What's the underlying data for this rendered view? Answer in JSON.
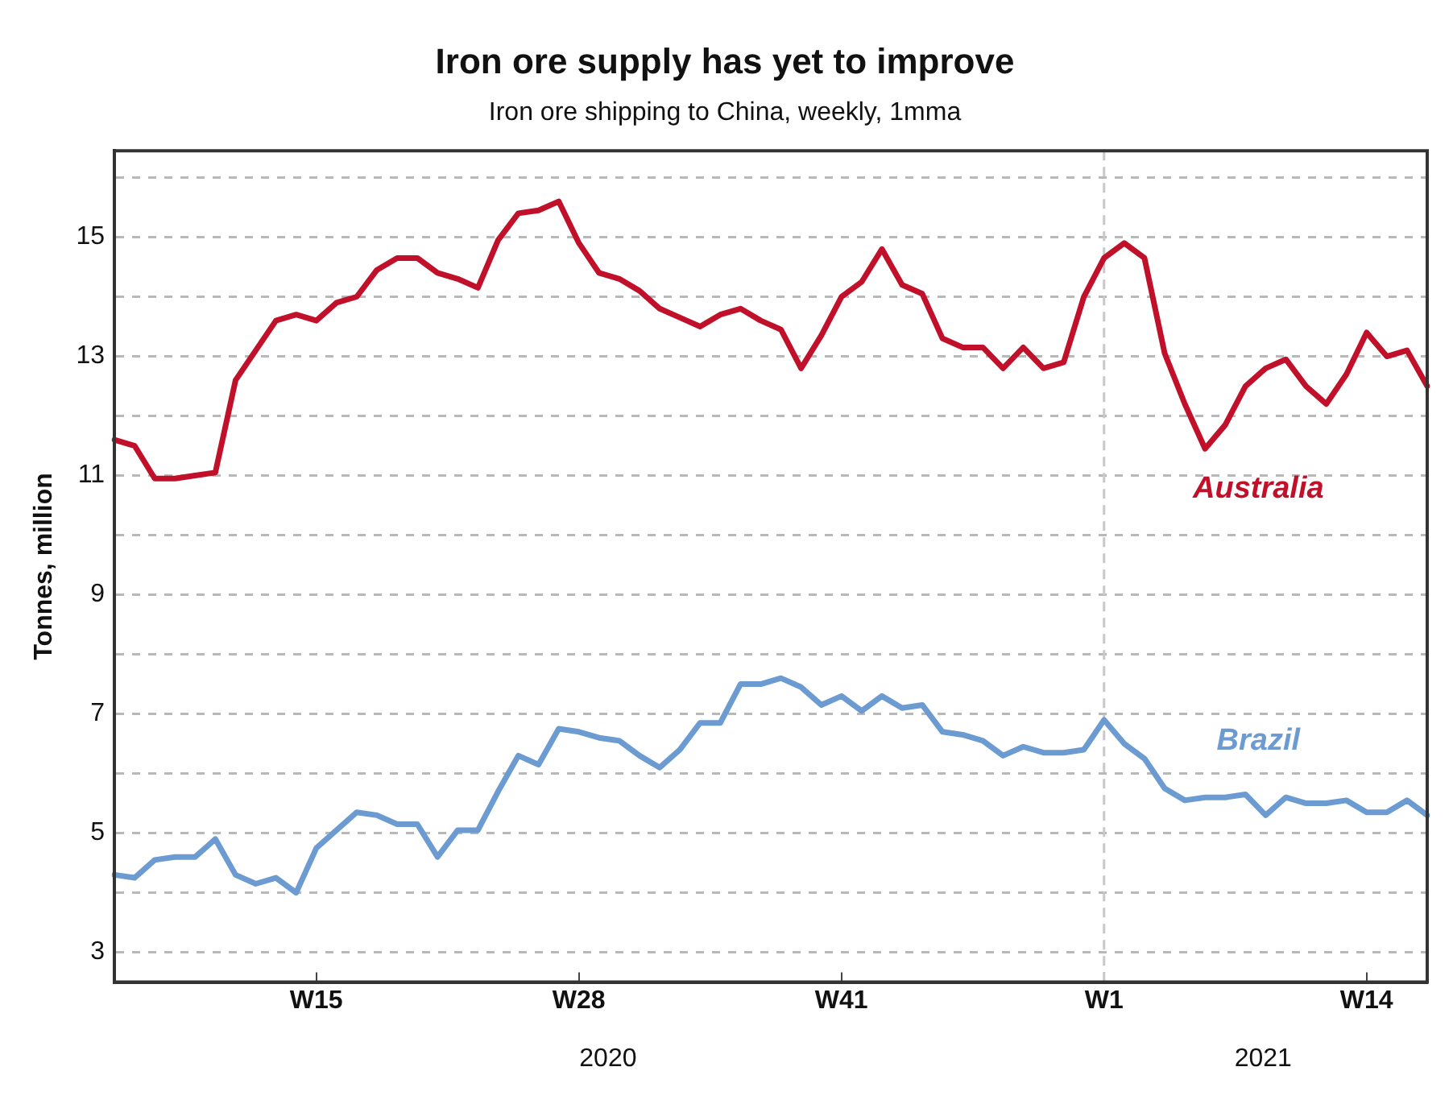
{
  "chart_data": {
    "type": "line",
    "title": "Iron ore supply has yet to improve",
    "subtitle": "Iron ore shipping to China, weekly, 1mma",
    "ylabel": "Tonnes, million",
    "categories": [
      null,
      null,
      null,
      null,
      null,
      null,
      null,
      null,
      null,
      null,
      "W15",
      null,
      null,
      null,
      null,
      null,
      null,
      null,
      null,
      null,
      null,
      null,
      null,
      "W28",
      null,
      null,
      null,
      null,
      null,
      null,
      null,
      null,
      null,
      null,
      null,
      null,
      "W41",
      null,
      null,
      null,
      null,
      null,
      null,
      null,
      null,
      null,
      null,
      null,
      null,
      "W1",
      null,
      null,
      null,
      null,
      null,
      null,
      null,
      null,
      null,
      null,
      null,
      null,
      "W14",
      null,
      null,
      null
    ],
    "annotations": [
      "2020",
      "2021"
    ],
    "series": [
      {
        "name": "Australia",
        "color": "#c0102a",
        "values": [
          11.6,
          11.5,
          10.95,
          10.95,
          11.0,
          11.05,
          12.6,
          13.1,
          13.6,
          13.7,
          13.6,
          13.9,
          14.0,
          14.45,
          14.65,
          14.65,
          14.4,
          14.3,
          14.15,
          14.95,
          15.4,
          15.45,
          15.6,
          14.9,
          14.4,
          14.3,
          14.1,
          13.8,
          13.65,
          13.5,
          13.7,
          13.8,
          13.6,
          13.45,
          12.8,
          13.35,
          14.0,
          14.25,
          14.8,
          14.2,
          14.05,
          13.3,
          13.15,
          13.15,
          12.8,
          13.15,
          12.8,
          12.9,
          14.0,
          14.65,
          14.9,
          14.65,
          13.05,
          12.2,
          11.45,
          11.85,
          12.5,
          12.8,
          12.95,
          12.5,
          12.2,
          12.7,
          13.4,
          13.0,
          13.1,
          12.5
        ]
      },
      {
        "name": "Brazil",
        "color": "#6c9bd2",
        "values": [
          4.3,
          4.25,
          4.55,
          4.6,
          4.6,
          4.9,
          4.3,
          4.15,
          4.25,
          4.0,
          4.75,
          5.05,
          5.35,
          5.3,
          5.15,
          5.15,
          4.6,
          5.05,
          5.05,
          5.7,
          6.3,
          6.15,
          6.75,
          6.7,
          6.6,
          6.55,
          6.3,
          6.1,
          6.4,
          6.85,
          6.85,
          7.5,
          7.5,
          7.6,
          7.45,
          7.15,
          7.3,
          7.05,
          7.3,
          7.1,
          7.15,
          6.7,
          6.65,
          6.55,
          6.3,
          6.45,
          6.35,
          6.35,
          6.4,
          6.9,
          6.5,
          6.25,
          5.75,
          5.55,
          5.6,
          5.6,
          5.65,
          5.3,
          5.6,
          5.5,
          5.5,
          5.55,
          5.35,
          5.35,
          5.55,
          5.3
        ]
      }
    ],
    "ylim": [
      2.5,
      16.45
    ],
    "yticks": [
      3,
      {
        "value": 4,
        "label": null
      },
      5,
      {
        "value": 6,
        "label": null
      },
      7,
      {
        "value": 8,
        "label": null
      },
      9,
      {
        "value": 10,
        "label": null
      },
      11,
      {
        "value": 12,
        "label": null
      },
      13,
      {
        "value": 14,
        "label": null
      },
      15,
      {
        "value": 16,
        "label": null
      }
    ],
    "ref_lines": [
      {
        "axis": "x",
        "value": "W1",
        "color": "#c8c8c8",
        "line_style": "dashed"
      }
    ],
    "grid": "y",
    "legend": false,
    "marker": "none",
    "line_style": "solid"
  }
}
